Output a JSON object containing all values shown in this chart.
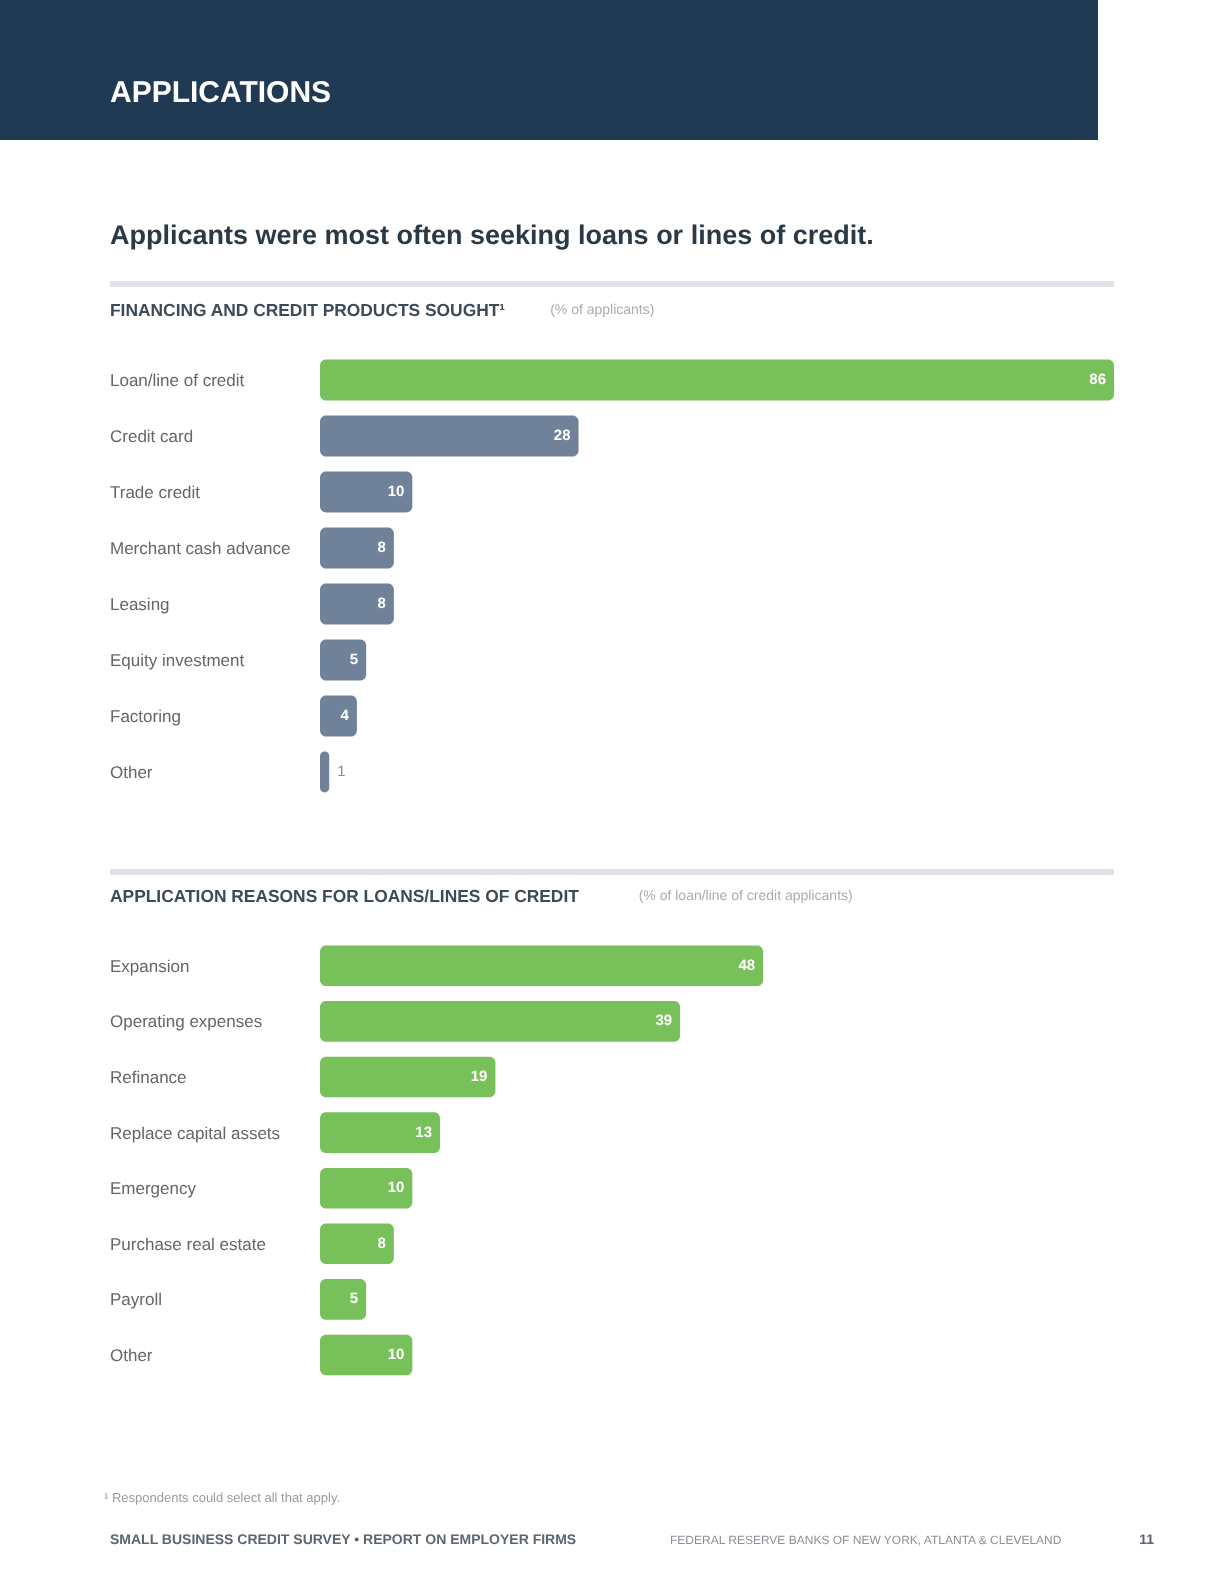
{
  "chart_data": [
    {
      "type": "bar",
      "orientation": "horizontal",
      "title": "Applicants were most often seeking loans or lines of credit.",
      "subtitle": "FINANCING AND CREDIT PRODUCTS SOUGHT¹",
      "xlabel": "(% of applicants)",
      "annotations": [
        "APPLICATIONS"
      ],
      "categories": [
        "Loan/line of credit",
        "Credit card",
        "Trade credit",
        "Merchant cash advance",
        "Leasing",
        "Equity investment",
        "Factoring",
        "Other"
      ],
      "values": [
        86,
        28,
        10,
        8,
        8,
        5,
        4,
        1
      ],
      "colors": [
        "#78c15a",
        "#70829a",
        "#70829a",
        "#70829a",
        "#70829a",
        "#70829a",
        "#70829a",
        "#70829a"
      ],
      "data_labels": true
    },
    {
      "type": "bar",
      "orientation": "horizontal",
      "subtitle": "APPLICATION REASONS FOR LOANS/LINES OF CREDIT",
      "xlabel": "(% of loan/line of credit applicants)",
      "annotations": [
        "¹ Respondents could select all that apply.",
        "SMALL BUSINESS CREDIT SURVEY • REPORT ON EMPLOYER FIRMS",
        "FEDERAL RESERVE BANKS OF NEW YORK, ATLANTA & CLEVELAND",
        "11"
      ],
      "categories": [
        "Expansion",
        "Operating expenses",
        "Refinance",
        "Replace capital assets",
        "Emergency",
        "Purchase real estate",
        "Payroll",
        "Other"
      ],
      "values": [
        48,
        39,
        19,
        13,
        10,
        8,
        5,
        10
      ],
      "color": "#78c15a",
      "data_labels": true
    }
  ]
}
